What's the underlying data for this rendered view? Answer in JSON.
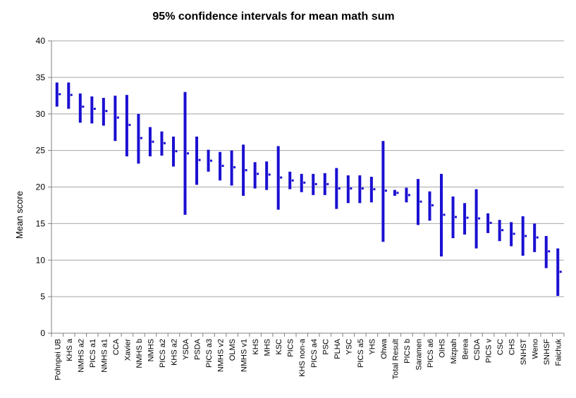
{
  "chart_data": {
    "type": "error-bar",
    "title": "95% confidence intervals for mean math sum",
    "ylabel": "Mean score",
    "xlabel": "",
    "ylim": [
      0,
      40
    ],
    "yticks": [
      0,
      5,
      10,
      15,
      20,
      25,
      30,
      35,
      40
    ],
    "grid": true,
    "colors": {
      "bar": "#1a0fd1",
      "mean": "#1a0fd1",
      "grid": "#a6a6a6",
      "axis": "#808080"
    },
    "categories": [
      "Pohnpei UB",
      "KHS a",
      "NMHS a2",
      "PICS a1",
      "NMHS a1",
      "CCA",
      "Xavier",
      "NMHS b",
      "NMHS",
      "PICS a2",
      "KHS a2",
      "YSDA",
      "PSDA",
      "PICS a3",
      "NMHS v2",
      "OLMS",
      "NMHS v1",
      "KHS",
      "MHS",
      "KSC",
      "PICS",
      "KHS non-a",
      "PICS a4",
      "PSC",
      "PLHA",
      "YSC",
      "PICS a5",
      "YHS",
      "Ohwa",
      "Total Result",
      "PICS b",
      "Saramen",
      "PICS a6",
      "OIHS",
      "Mizpah",
      "Berea",
      "CSDA",
      "PICS v",
      "CSC",
      "CHS",
      "SNHST",
      "Weno",
      "SNHSF",
      "Faichuk"
    ],
    "lower": [
      31.0,
      30.7,
      28.8,
      28.7,
      28.4,
      26.3,
      24.2,
      23.2,
      24.2,
      24.3,
      22.8,
      16.2,
      20.3,
      22.1,
      20.9,
      20.2,
      18.8,
      19.8,
      19.6,
      16.9,
      19.7,
      19.3,
      18.9,
      18.9,
      17.0,
      17.8,
      17.8,
      17.9,
      12.5,
      18.8,
      17.9,
      14.8,
      15.4,
      10.5,
      13.0,
      13.5,
      11.6,
      13.7,
      12.6,
      11.9,
      10.6,
      11.1,
      8.9,
      5.1
    ],
    "upper": [
      34.3,
      34.3,
      32.8,
      32.4,
      32.2,
      32.5,
      32.6,
      30.0,
      28.2,
      27.6,
      26.9,
      33.0,
      26.9,
      25.1,
      24.8,
      25.0,
      25.8,
      23.4,
      23.5,
      25.6,
      22.1,
      21.8,
      21.8,
      21.9,
      22.6,
      21.6,
      21.6,
      21.4,
      26.3,
      19.6,
      19.9,
      21.1,
      19.4,
      21.8,
      18.7,
      17.8,
      19.7,
      16.4,
      15.5,
      15.2,
      16.0,
      15.0,
      13.3,
      11.6
    ],
    "means": [
      32.7,
      32.6,
      31.0,
      30.7,
      30.4,
      29.5,
      28.5,
      26.7,
      26.2,
      26.0,
      24.9,
      24.6,
      23.7,
      23.6,
      22.9,
      22.7,
      22.3,
      21.8,
      21.7,
      21.3,
      20.9,
      20.6,
      20.4,
      20.4,
      19.8,
      19.8,
      19.8,
      19.7,
      19.5,
      19.2,
      18.9,
      18.0,
      17.5,
      16.2,
      15.9,
      15.8,
      15.7,
      15.1,
      14.1,
      13.6,
      13.3,
      13.1,
      11.2,
      8.4
    ]
  }
}
